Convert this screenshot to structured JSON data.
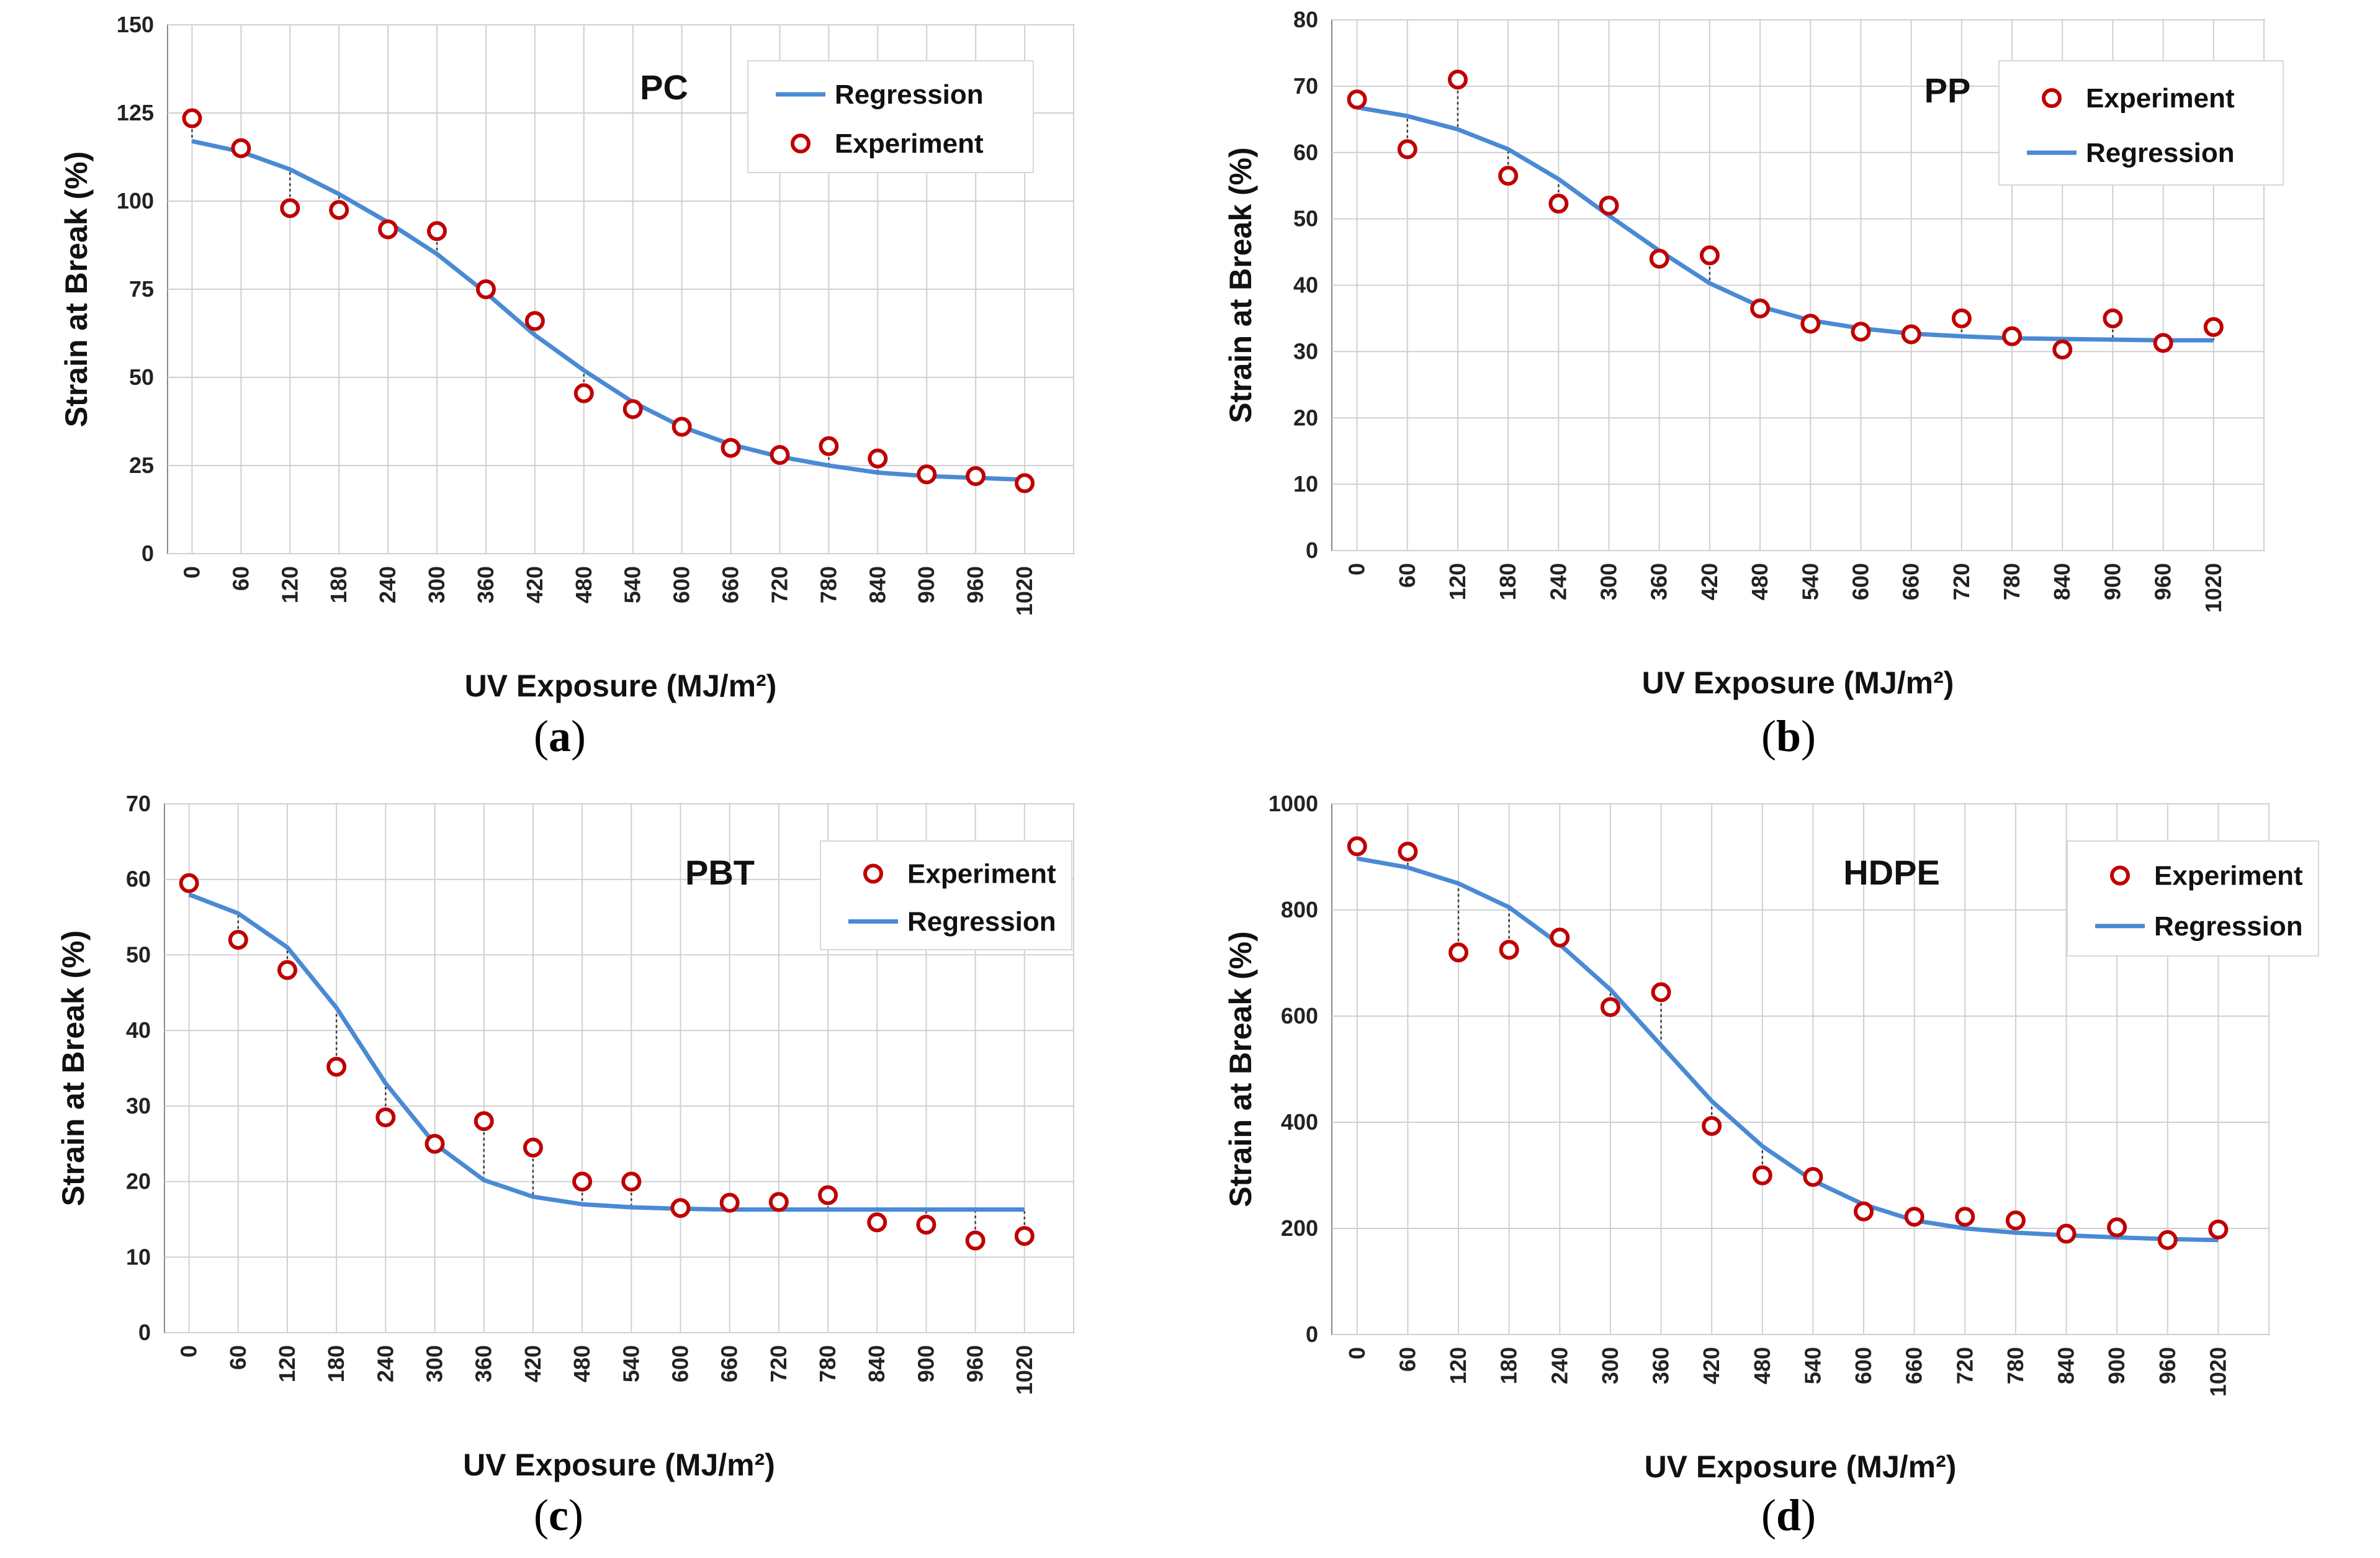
{
  "colors": {
    "regression": "#4a8ad4",
    "experiment": "#c00000",
    "grid": "#d0d0d0",
    "axis": "#888888"
  },
  "x_title": "UV Exposure (MJ/m²)",
  "y_title": "Strain at Break (%)",
  "chart_data": [
    {
      "id": "a",
      "type": "line",
      "title": "PC",
      "caption": "a",
      "xlabel": "UV Exposure (MJ/m²)",
      "ylabel": "Strain at Break (%)",
      "x": [
        0,
        60,
        120,
        180,
        240,
        300,
        360,
        420,
        480,
        540,
        600,
        660,
        720,
        780,
        840,
        900,
        960,
        1020
      ],
      "ylim": [
        0,
        150
      ],
      "yticks": [
        0,
        25,
        50,
        75,
        100,
        125,
        150
      ],
      "legend": {
        "position": "top-right",
        "entries": [
          "Regression",
          "Experiment"
        ]
      },
      "series": [
        {
          "name": "Regression",
          "kind": "line",
          "values": [
            117,
            114,
            109,
            102,
            94,
            85,
            74,
            62,
            52,
            43,
            36,
            31,
            27.5,
            25,
            23,
            22,
            21.5,
            21
          ]
        },
        {
          "name": "Experiment",
          "kind": "scatter",
          "values": [
            123.5,
            115,
            98,
            97.5,
            92,
            91.5,
            75,
            66,
            45.5,
            41,
            36,
            30,
            28,
            30.5,
            27,
            22.5,
            22,
            20
          ]
        }
      ]
    },
    {
      "id": "b",
      "type": "line",
      "title": "PP",
      "caption": "b",
      "xlabel": "UV Exposure (MJ/m²)",
      "ylabel": "Strain at Break (%)",
      "x": [
        0,
        60,
        120,
        180,
        240,
        300,
        360,
        420,
        480,
        540,
        600,
        660,
        720,
        780,
        840,
        900,
        960,
        1020
      ],
      "ylim": [
        0,
        80
      ],
      "yticks": [
        0,
        10,
        20,
        30,
        40,
        50,
        60,
        70,
        80
      ],
      "legend": {
        "position": "top-right",
        "entries": [
          "Experiment",
          "Regression"
        ]
      },
      "series": [
        {
          "name": "Regression",
          "kind": "line",
          "values": [
            66.8,
            65.5,
            63.5,
            60.5,
            56,
            50.5,
            45.2,
            40.3,
            36.8,
            34.7,
            33.5,
            32.7,
            32.3,
            32,
            31.9,
            31.8,
            31.7,
            31.7
          ]
        },
        {
          "name": "Experiment",
          "kind": "scatter",
          "values": [
            68,
            60.5,
            71,
            56.5,
            52.3,
            52,
            44,
            44.5,
            36.5,
            34.2,
            33,
            32.6,
            35,
            32.3,
            30.3,
            35,
            31.3,
            33.7
          ]
        }
      ]
    },
    {
      "id": "c",
      "type": "line",
      "title": "PBT",
      "caption": "c",
      "xlabel": "UV Exposure (MJ/m²)",
      "ylabel": "Strain at Break (%)",
      "x": [
        0,
        60,
        120,
        180,
        240,
        300,
        360,
        420,
        480,
        540,
        600,
        660,
        720,
        780,
        840,
        900,
        960,
        1020
      ],
      "ylim": [
        0,
        70
      ],
      "yticks": [
        0,
        10,
        20,
        30,
        40,
        50,
        60,
        70
      ],
      "legend": {
        "position": "top-right",
        "entries": [
          "Experiment",
          "Regression"
        ]
      },
      "series": [
        {
          "name": "Regression",
          "kind": "line",
          "values": [
            58,
            55.5,
            51,
            43,
            33,
            25,
            20.2,
            18,
            17,
            16.6,
            16.4,
            16.3,
            16.3,
            16.3,
            16.3,
            16.3,
            16.3,
            16.3
          ]
        },
        {
          "name": "Experiment",
          "kind": "scatter",
          "values": [
            59.5,
            52,
            48,
            35.2,
            28.5,
            25,
            28,
            24.5,
            20,
            20,
            16.5,
            17.2,
            17.3,
            18.2,
            14.6,
            14.3,
            12.2,
            12.8
          ]
        }
      ]
    },
    {
      "id": "d",
      "type": "line",
      "title": "HDPE",
      "caption": "d",
      "xlabel": "UV Exposure (MJ/m²)",
      "ylabel": "Strain at Break (%)",
      "x": [
        0,
        60,
        120,
        180,
        240,
        300,
        360,
        420,
        480,
        540,
        600,
        660,
        720,
        780,
        840,
        900,
        960,
        1020
      ],
      "ylim": [
        0,
        1000
      ],
      "yticks": [
        0,
        200,
        400,
        600,
        800,
        1000
      ],
      "legend": {
        "position": "top-right",
        "entries": [
          "Experiment",
          "Regression"
        ]
      },
      "series": [
        {
          "name": "Regression",
          "kind": "line",
          "values": [
            897,
            880,
            850,
            805,
            735,
            650,
            545,
            440,
            355,
            290,
            245,
            215,
            200,
            192,
            187,
            183,
            180,
            178
          ]
        },
        {
          "name": "Experiment",
          "kind": "scatter",
          "values": [
            920,
            910,
            720,
            725,
            748,
            617,
            645,
            393,
            300,
            297,
            232,
            222,
            222,
            215,
            190,
            202,
            178,
            198
          ]
        }
      ]
    }
  ]
}
